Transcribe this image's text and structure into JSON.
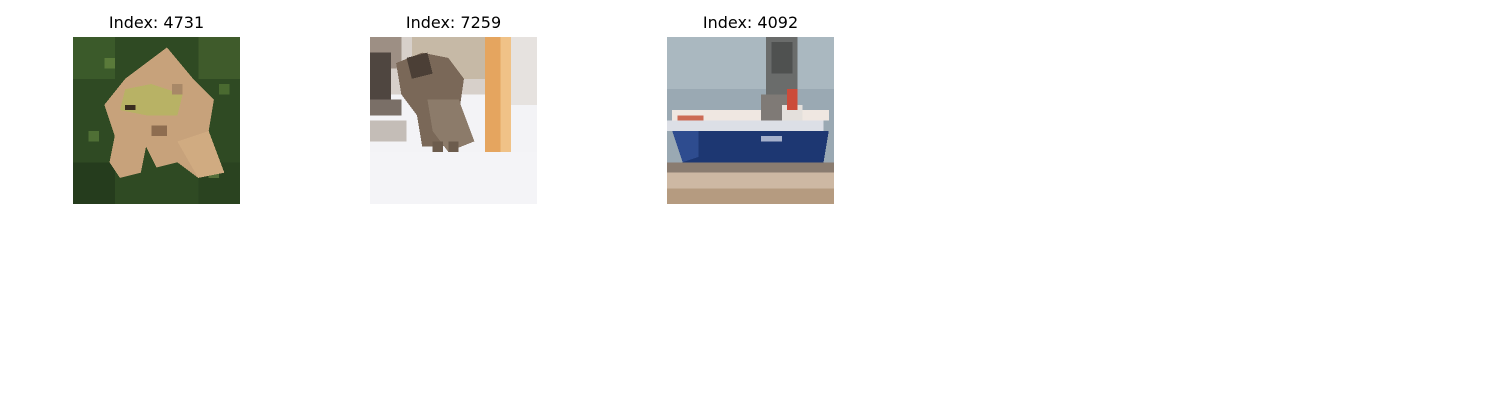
{
  "figure": {
    "panels": [
      {
        "title": "Index: 4731",
        "subject": "frog on green grass"
      },
      {
        "title": "Index: 7259",
        "subject": "cat near wooden post"
      },
      {
        "title": "Index: 4092",
        "subject": "blue ship on water"
      }
    ]
  }
}
